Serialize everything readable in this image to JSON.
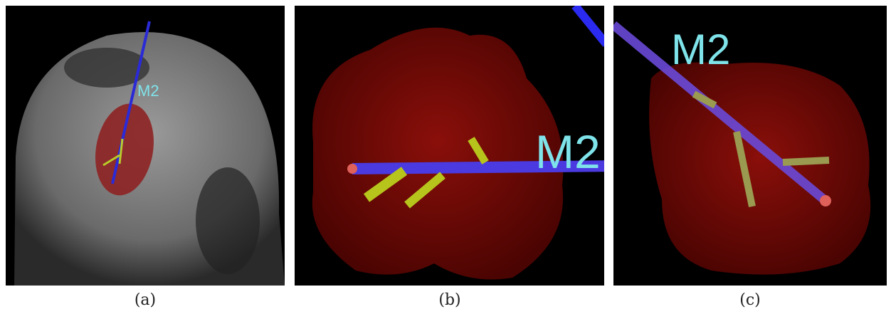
{
  "panels": [
    {
      "label": "M2",
      "caption": "(a)"
    },
    {
      "label": "M2",
      "caption": "(b)"
    },
    {
      "label": "M2",
      "caption": "(c)"
    }
  ]
}
